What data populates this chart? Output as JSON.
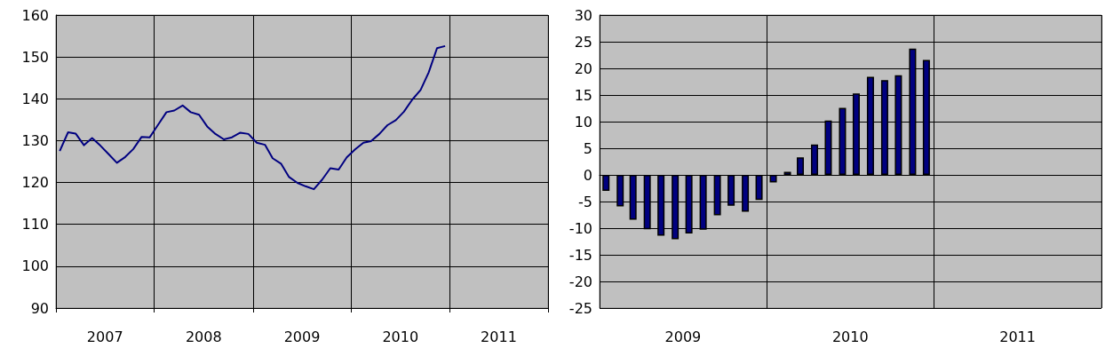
{
  "chart_data": [
    {
      "type": "line",
      "color": "#000080",
      "x": [
        "2007-01-15",
        "2007-02-15",
        "2007-03-15",
        "2007-04-15",
        "2007-05-15",
        "2007-06-15",
        "2007-07-15",
        "2007-08-15",
        "2007-09-15",
        "2007-10-15",
        "2007-11-15",
        "2007-12-15",
        "2008-01-15",
        "2008-02-15",
        "2008-03-15",
        "2008-04-15",
        "2008-05-15",
        "2008-06-15",
        "2008-07-15",
        "2008-08-15",
        "2008-09-15",
        "2008-10-15",
        "2008-11-15",
        "2008-12-15",
        "2009-01-15",
        "2009-02-15",
        "2009-03-15",
        "2009-04-15",
        "2009-05-15",
        "2009-06-15",
        "2009-07-15",
        "2009-08-15",
        "2009-09-15",
        "2009-10-15",
        "2009-11-15",
        "2009-12-15",
        "2010-01-15",
        "2010-02-15",
        "2010-03-15",
        "2010-04-15",
        "2010-05-15",
        "2010-06-15",
        "2010-07-15",
        "2010-08-15",
        "2010-09-15",
        "2010-10-15",
        "2010-11-15",
        "2010-12-15"
      ],
      "values": [
        127.5,
        132.0,
        131.7,
        128.9,
        130.6,
        128.8,
        126.8,
        124.7,
        126.1,
        128.0,
        130.9,
        130.8,
        133.8,
        136.8,
        137.2,
        138.4,
        136.8,
        136.2,
        133.4,
        131.6,
        130.3,
        130.8,
        131.9,
        131.6,
        129.5,
        129.0,
        125.8,
        124.5,
        121.3,
        119.9,
        119.1,
        118.4,
        120.7,
        123.4,
        123.1,
        126.0,
        127.9,
        129.5,
        129.9,
        131.6,
        133.7,
        134.9,
        136.9,
        139.8,
        142.1,
        146.3,
        152.1,
        152.6
      ],
      "xlim": [
        "2007-01-01",
        "2012-01-01"
      ],
      "xticks": [
        {
          "value": "2007-01-01",
          "label": null
        },
        {
          "value": "2007-07-02",
          "label": "2007"
        },
        {
          "value": "2008-01-01",
          "label": null
        },
        {
          "value": "2008-07-02",
          "label": "2008"
        },
        {
          "value": "2009-01-01",
          "label": null
        },
        {
          "value": "2009-07-02",
          "label": "2009"
        },
        {
          "value": "2010-01-01",
          "label": null
        },
        {
          "value": "2010-07-02",
          "label": "2010"
        },
        {
          "value": "2011-01-01",
          "label": null
        },
        {
          "value": "2011-07-02",
          "label": "2011"
        },
        {
          "value": "2012-01-01",
          "label": null
        }
      ],
      "ylim": [
        90,
        160
      ],
      "yticks": [
        90,
        100,
        110,
        120,
        130,
        140,
        150,
        160
      ],
      "grid": true
    },
    {
      "type": "bar",
      "color": "#000080",
      "x": [
        "2009-01-15",
        "2009-02-15",
        "2009-03-15",
        "2009-04-15",
        "2009-05-15",
        "2009-06-15",
        "2009-07-15",
        "2009-08-15",
        "2009-09-15",
        "2009-10-15",
        "2009-11-15",
        "2009-12-15",
        "2010-01-15",
        "2010-02-15",
        "2010-03-15",
        "2010-04-15",
        "2010-05-15",
        "2010-06-15",
        "2010-07-15",
        "2010-08-15",
        "2010-09-15",
        "2010-10-15",
        "2010-11-15",
        "2010-12-15"
      ],
      "values": [
        -3.0,
        -5.9,
        -8.4,
        -10.2,
        -11.4,
        -12.1,
        -11.0,
        -10.3,
        -7.6,
        -5.8,
        -6.9,
        -4.7,
        -1.4,
        0.6,
        3.3,
        5.7,
        10.2,
        12.6,
        15.3,
        18.4,
        17.8,
        18.7,
        23.7,
        21.6
      ],
      "xlim": [
        "2009-01-01",
        "2012-01-01"
      ],
      "xticks": [
        {
          "value": "2009-01-01",
          "label": null
        },
        {
          "value": "2009-07-02",
          "label": "2009"
        },
        {
          "value": "2010-01-01",
          "label": null
        },
        {
          "value": "2010-07-02",
          "label": "2010"
        },
        {
          "value": "2011-01-01",
          "label": null
        },
        {
          "value": "2011-07-02",
          "label": "2011"
        },
        {
          "value": "2012-01-01",
          "label": null
        }
      ],
      "ylim": [
        -25,
        30
      ],
      "yticks": [
        -25,
        -20,
        -15,
        -10,
        -5,
        0,
        5,
        10,
        15,
        20,
        25,
        30
      ],
      "grid": true
    }
  ]
}
